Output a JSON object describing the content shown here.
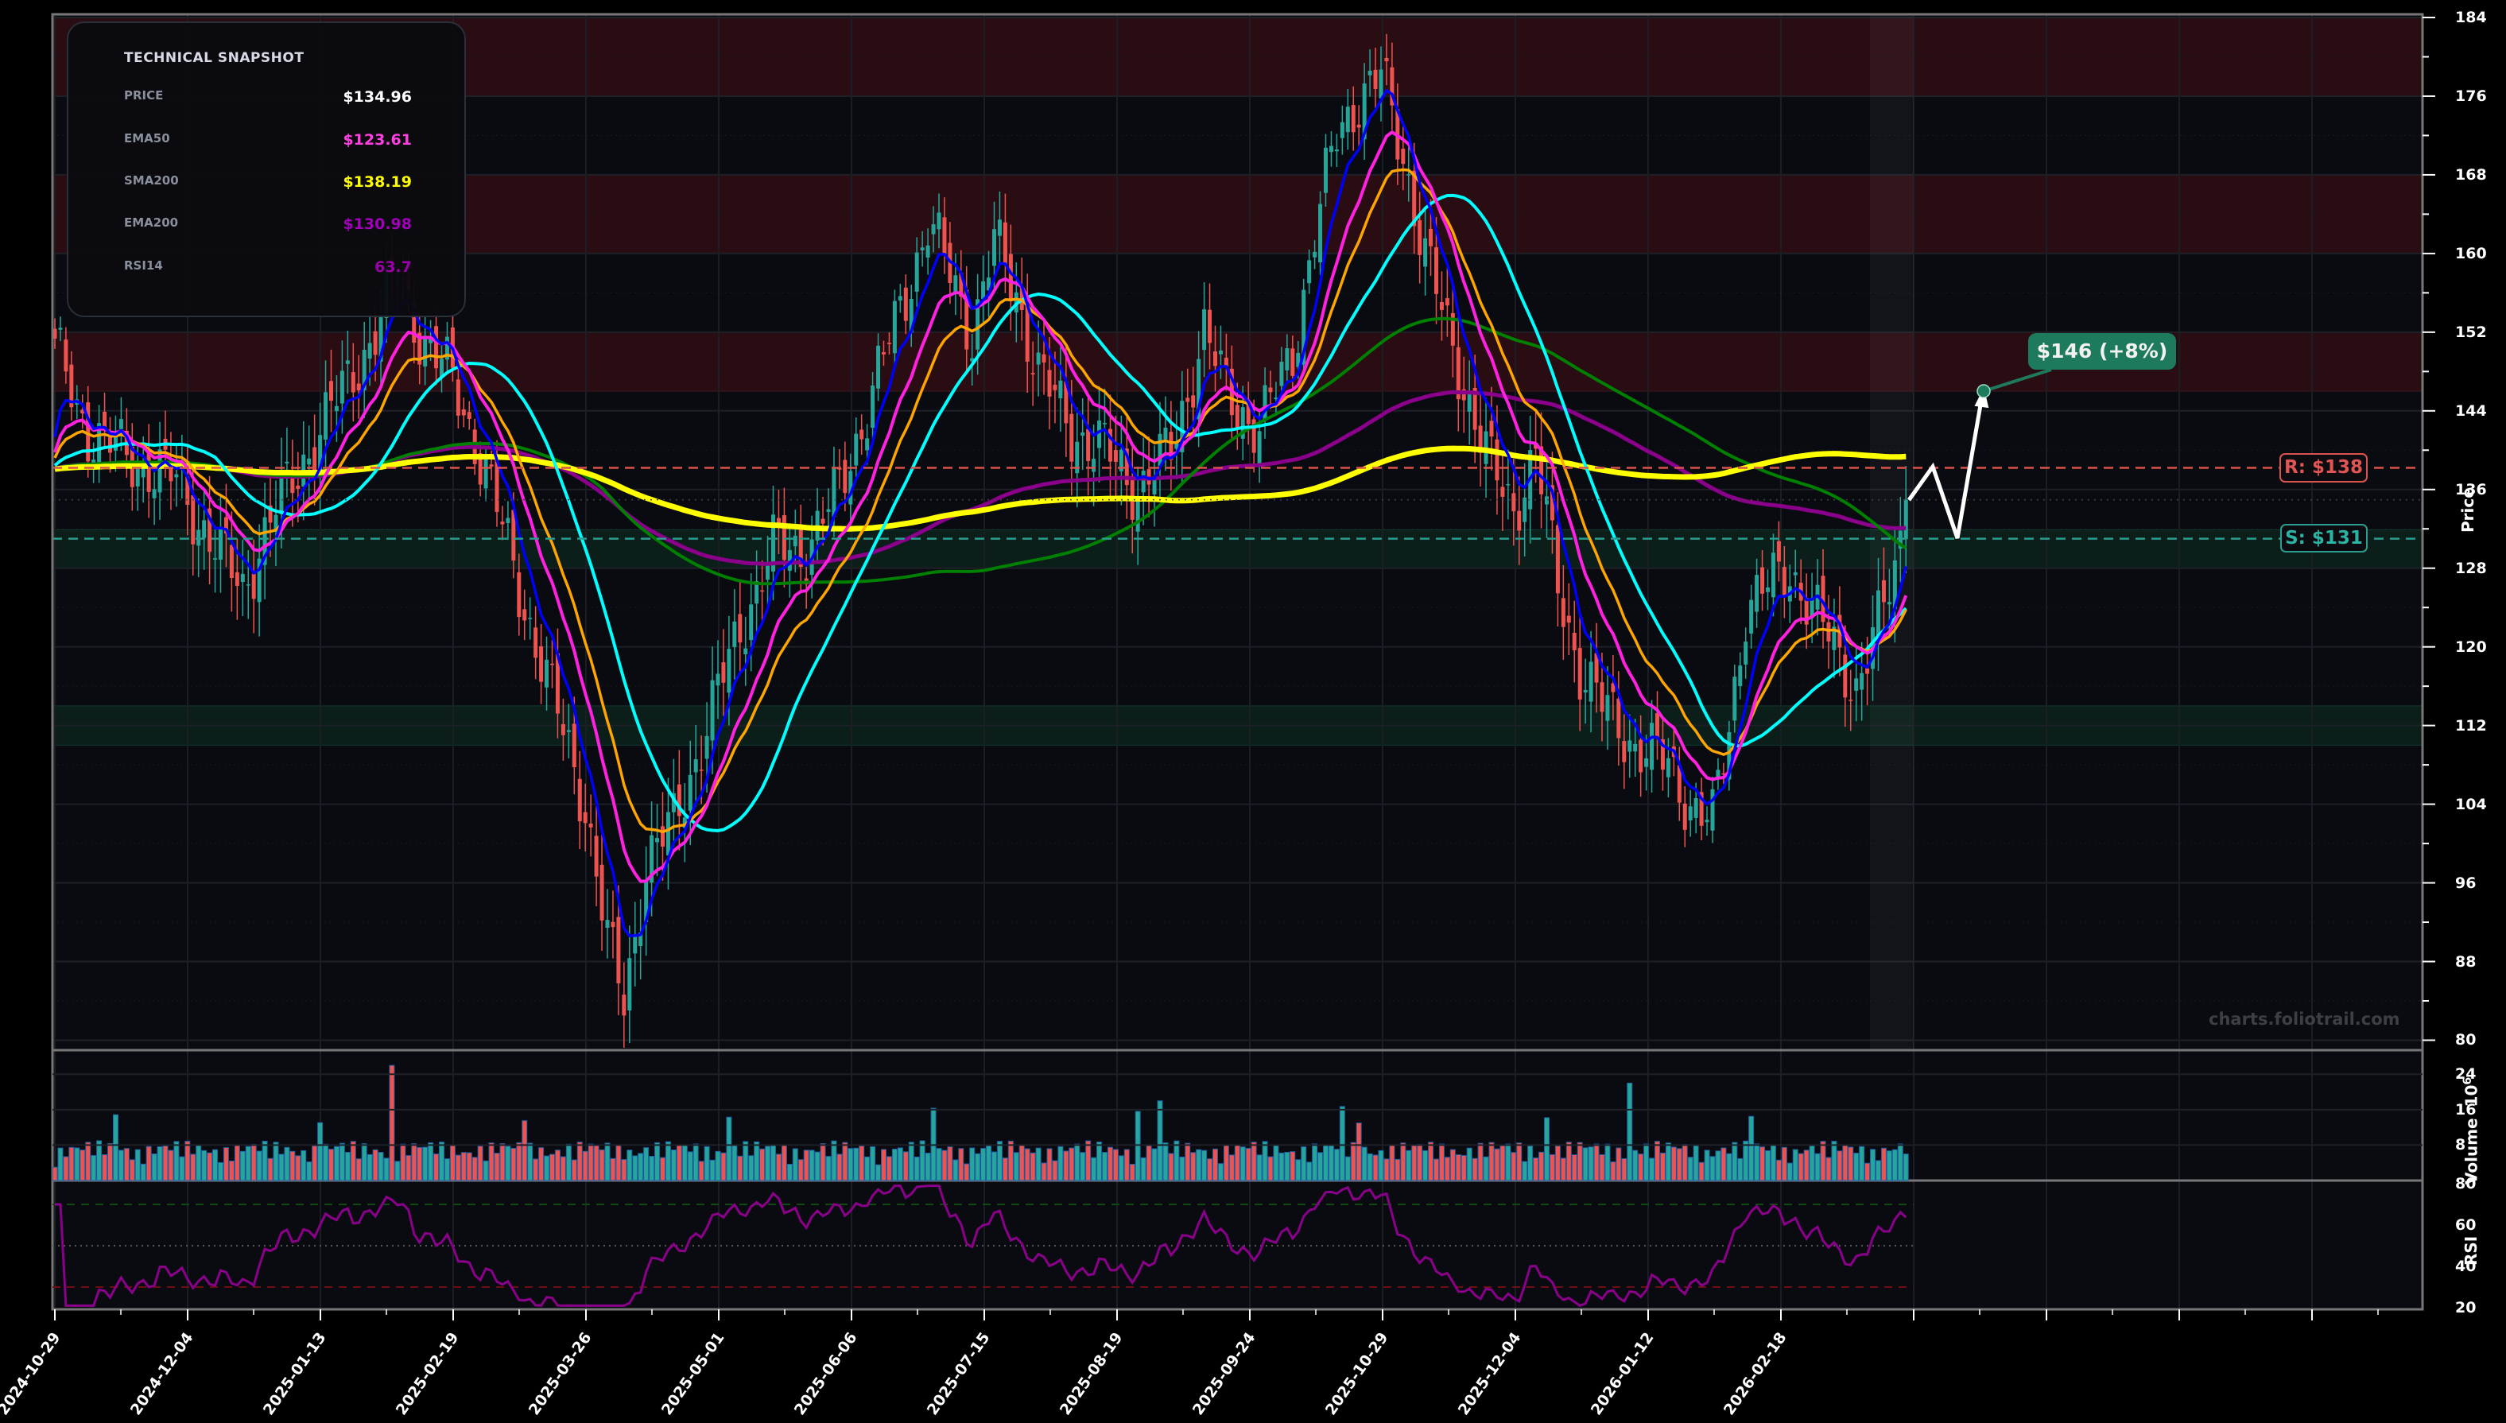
{
  "snapshot": {
    "title": "TECHNICAL SNAPSHOT",
    "rows": [
      {
        "label": "PRICE",
        "value": "$134.96",
        "color": "#ffffff"
      },
      {
        "label": "EMA50",
        "value": "$123.61",
        "color": "#ff40e0"
      },
      {
        "label": "SMA200",
        "value": "$138.19",
        "color": "#ffff00"
      },
      {
        "label": "EMA200",
        "value": "$130.98",
        "color": "#a000b8"
      },
      {
        "label": "RSI14",
        "value": "63.7",
        "color": "#9a00a8"
      }
    ]
  },
  "annotations": {
    "target_label": "$146 (+8%)",
    "resistance_label": "R: $138",
    "support_label": "S: $131",
    "watermark": "charts.foliotrail.com"
  },
  "axes": {
    "price_label": "Price",
    "volume_label": "Volume",
    "volume_exp": "10",
    "volume_exp_sup": "6",
    "rsi_label": "RSI",
    "price_ticks": [
      "184",
      "176",
      "168",
      "160",
      "152",
      "144",
      "136",
      "128",
      "120",
      "112",
      "104",
      "96",
      "88",
      "80"
    ],
    "volume_ticks": [
      "24",
      "16",
      "8"
    ],
    "rsi_ticks": [
      "80",
      "60",
      "40",
      "20"
    ],
    "x_ticks": [
      "2024-10-29",
      "2024-12-04",
      "2025-01-13",
      "2025-02-19",
      "2025-03-26",
      "2025-05-01",
      "2025-06-06",
      "2025-07-15",
      "2025-08-19",
      "2025-09-24",
      "2025-10-29",
      "2025-12-04",
      "2026-01-12",
      "2026-02-18"
    ]
  },
  "colors": {
    "up": "#26a69a",
    "down": "#ef5350",
    "bg": "#0a0b10",
    "resistance_zone": "#2a0d12",
    "support_zone": "#0b2620",
    "ema_fast": "#0000ff",
    "ema21": "#ffa500",
    "ema50": "#ff20e0",
    "sma50": "#00ffff",
    "sma100": "#008000",
    "sma200": "#ffff00",
    "ema200": "#8b008b",
    "rsi": "#8b008b"
  },
  "chart_data": {
    "type": "candlestick",
    "title": "",
    "xlabel": "",
    "ylabel": "Price",
    "ylim": [
      80,
      184
    ],
    "x_tick_labels": [
      "2024-10-29",
      "2024-12-04",
      "2025-01-13",
      "2025-02-19",
      "2025-03-26",
      "2025-05-01",
      "2025-06-06",
      "2025-07-15",
      "2025-08-19",
      "2025-09-24",
      "2025-10-29",
      "2025-12-04",
      "2026-01-12",
      "2026-02-18"
    ],
    "close_waypoints": [
      [
        0,
        150
      ],
      [
        6,
        142
      ],
      [
        14,
        139
      ],
      [
        22,
        137
      ],
      [
        28,
        131
      ],
      [
        34,
        126
      ],
      [
        40,
        134
      ],
      [
        46,
        140
      ],
      [
        52,
        146
      ],
      [
        58,
        152
      ],
      [
        62,
        158
      ],
      [
        66,
        152
      ],
      [
        72,
        147
      ],
      [
        78,
        138
      ],
      [
        84,
        126
      ],
      [
        90,
        115
      ],
      [
        96,
        104
      ],
      [
        100,
        90
      ],
      [
        103,
        84
      ],
      [
        107,
        98
      ],
      [
        112,
        102
      ],
      [
        118,
        112
      ],
      [
        124,
        122
      ],
      [
        130,
        130
      ],
      [
        136,
        130
      ],
      [
        142,
        136
      ],
      [
        148,
        146
      ],
      [
        154,
        156
      ],
      [
        158,
        163
      ],
      [
        162,
        158
      ],
      [
        166,
        152
      ],
      [
        170,
        161
      ],
      [
        174,
        156
      ],
      [
        178,
        148
      ],
      [
        184,
        142
      ],
      [
        190,
        140
      ],
      [
        196,
        136
      ],
      [
        202,
        140
      ],
      [
        208,
        152
      ],
      [
        212,
        146
      ],
      [
        218,
        142
      ],
      [
        224,
        150
      ],
      [
        228,
        162
      ],
      [
        232,
        172
      ],
      [
        236,
        176
      ],
      [
        240,
        178
      ],
      [
        244,
        170
      ],
      [
        248,
        160
      ],
      [
        252,
        152
      ],
      [
        256,
        145
      ],
      [
        260,
        138
      ],
      [
        264,
        134
      ],
      [
        268,
        140
      ],
      [
        272,
        126
      ],
      [
        276,
        118
      ],
      [
        280,
        114
      ],
      [
        286,
        110
      ],
      [
        292,
        108
      ],
      [
        296,
        104
      ],
      [
        300,
        102
      ],
      [
        303,
        112
      ],
      [
        306,
        124
      ],
      [
        310,
        126
      ],
      [
        314,
        128
      ],
      [
        318,
        124
      ],
      [
        322,
        120
      ],
      [
        326,
        116
      ],
      [
        330,
        122
      ],
      [
        333,
        128
      ],
      [
        335,
        134.96
      ]
    ],
    "n_bars": 336,
    "series_last_values": {
      "price": 134.96,
      "EMA50": 123.61,
      "SMA200": 138.19,
      "EMA200": 130.98,
      "RSI14": 63.7
    },
    "resistance_levels": [
      138
    ],
    "support_levels": [
      131
    ],
    "resistance_zones": [
      [
        176,
        184
      ],
      [
        160,
        168
      ],
      [
        146,
        152
      ]
    ],
    "support_zones": [
      [
        128,
        131.9
      ],
      [
        110,
        114
      ]
    ],
    "projection": {
      "path": [
        [
          134.96,
          0
        ],
        [
          138,
          1
        ],
        [
          131,
          2
        ],
        [
          146,
          3
        ]
      ],
      "target": 146,
      "target_pct": "+8%"
    },
    "volume": {
      "ylabel": "Volume 10^6",
      "ylim": [
        0,
        28
      ]
    },
    "rsi": {
      "ylabel": "RSI",
      "ylim": [
        20,
        80
      ],
      "overbought": 70,
      "oversold": 30,
      "mid": 50
    }
  }
}
